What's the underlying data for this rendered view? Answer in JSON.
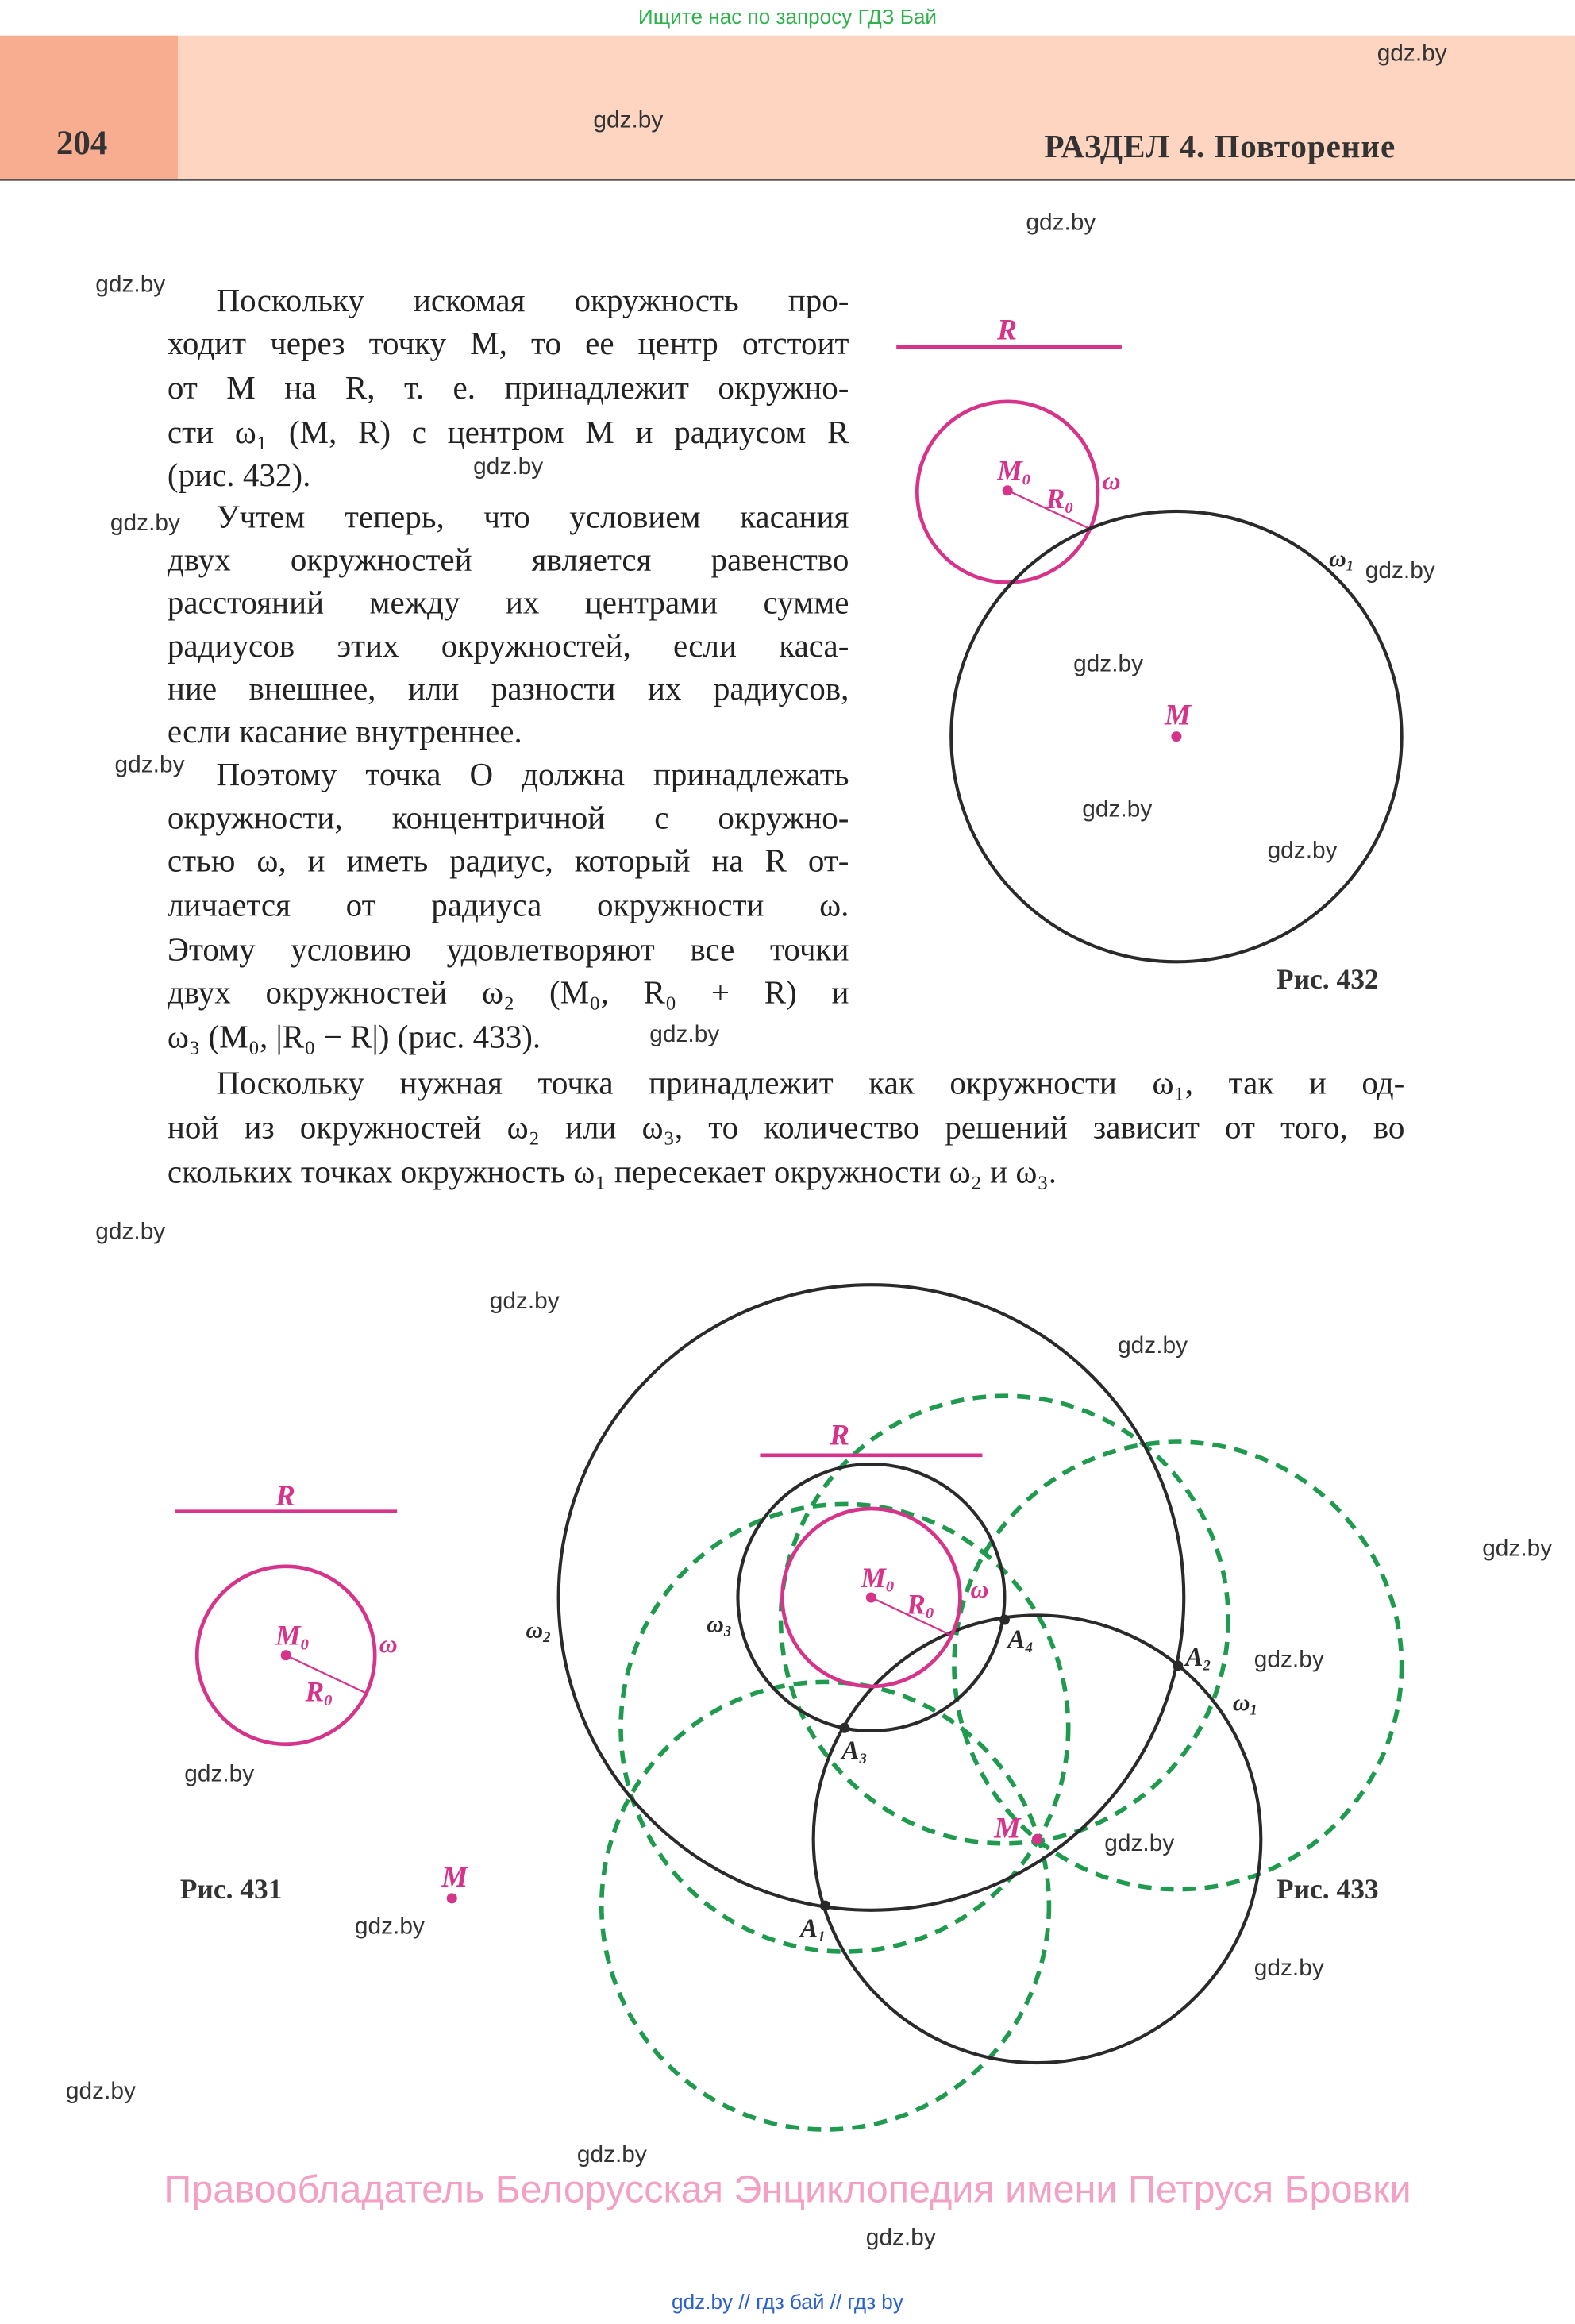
{
  "top_banner": "Ищите нас по запросу ГДЗ Бай",
  "header": {
    "page_number": "204",
    "section": "РАЗДЕЛ 4. Повторение"
  },
  "watermark": "gdz.by",
  "paragraphs": [
    {
      "lines": [
        "Поскольку искомая окружность про-",
        "ходит через точку M, то ее центр отстоит",
        "от M на R, т. е. принадлежит окружно-",
        "сти ω₁ (M, R) с центром M и радиусом R",
        "(рис. 432)."
      ]
    },
    {
      "lines": [
        "Учтем теперь, что условием касания",
        "двух окружностей является равенство",
        "расстояний между их центрами сумме",
        "радиусов этих окружностей, если каса-",
        "ние внешнее, или разности их радиусов,",
        "если касание внутреннее."
      ]
    },
    {
      "lines": [
        "Поэтому точка O должна принадлежать",
        "окружности, концентричной с окружно-",
        "стью ω, и иметь радиус, который на R от-",
        "личается от радиуса окружности ω.",
        "Этому условию удовлетворяют все точки",
        "двух окружностей ω₂ (M₀, R₀ + R) и",
        "ω₃ (M₀, |R₀ − R|) (рис. 433)."
      ]
    },
    {
      "lines": [
        "Поскольку нужная точка принадлежит как окружности ω₁, так и од-",
        "ной из окружностей ω₂ или ω₃, то количество решений зависит от того, во",
        "скольких точках окружность ω₁ пересекает окружности ω₂ и ω₃."
      ]
    }
  ],
  "figures": {
    "fig431": {
      "caption": "Рис. 431",
      "R": "R",
      "M0": "M",
      "M0_sub": "0",
      "R0": "R",
      "R0_sub": "0",
      "omega": "ω",
      "M": "M"
    },
    "fig432": {
      "caption": "Рис. 432",
      "R": "R",
      "M0": "M",
      "M0_sub": "0",
      "R0": "R",
      "R0_sub": "0",
      "omega": "ω",
      "omega1": "ω",
      "omega1_sub": "1",
      "M": "M"
    },
    "fig433": {
      "caption": "Рис. 433",
      "R": "R",
      "M0": "M",
      "M0_sub": "0",
      "R0": "R",
      "R0_sub": "0",
      "omega": "ω",
      "omega1": "ω",
      "omega1_sub": "1",
      "omega2": "ω",
      "omega2_sub": "2",
      "omega3": "ω",
      "omega3_sub": "3",
      "M": "M",
      "A": "A",
      "A1_sub": "1",
      "A2_sub": "2",
      "A3_sub": "3",
      "A4_sub": "4"
    }
  },
  "colors": {
    "pink": "#d6338a",
    "green": "#1f9a4e",
    "black": "#2a2a2a",
    "header_bg": "#fdd5c0",
    "page_num_bg": "#f8ad90"
  },
  "footer": "Правообладатель Белорусская Энциклопедия имени Петруся Бровки",
  "bottom_links": "gdz.by  //  гдз бай  //  гдз by"
}
